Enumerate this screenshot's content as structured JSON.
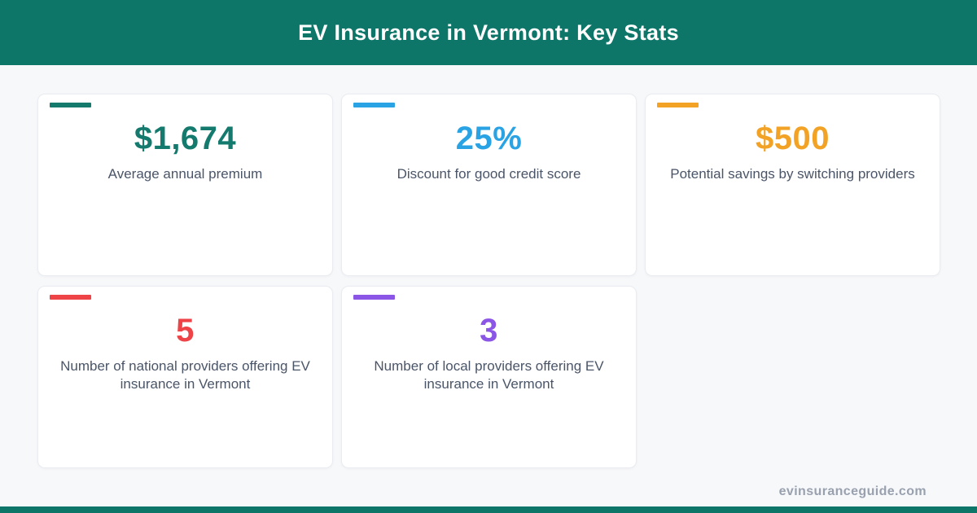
{
  "header": {
    "title": "EV Insurance in Vermont: Key Stats",
    "background_color": "#0e7669",
    "text_color": "#ffffff"
  },
  "cards": [
    {
      "value": "$1,674",
      "label": "Average annual premium",
      "color": "#147a6e"
    },
    {
      "value": "25%",
      "label": "Discount for good credit score",
      "color": "#29a3e4"
    },
    {
      "value": "$500",
      "label": "Potential savings by switching providers",
      "color": "#f2a326"
    },
    {
      "value": "5",
      "label": "Number of national providers offering EV insurance in Vermont",
      "color": "#ee4448"
    },
    {
      "value": "3",
      "label": "Number of local providers offering EV insurance in Vermont",
      "color": "#8b55e6"
    }
  ],
  "footer": {
    "website": "evinsuranceguide.com",
    "bar_color": "#0e7669"
  }
}
